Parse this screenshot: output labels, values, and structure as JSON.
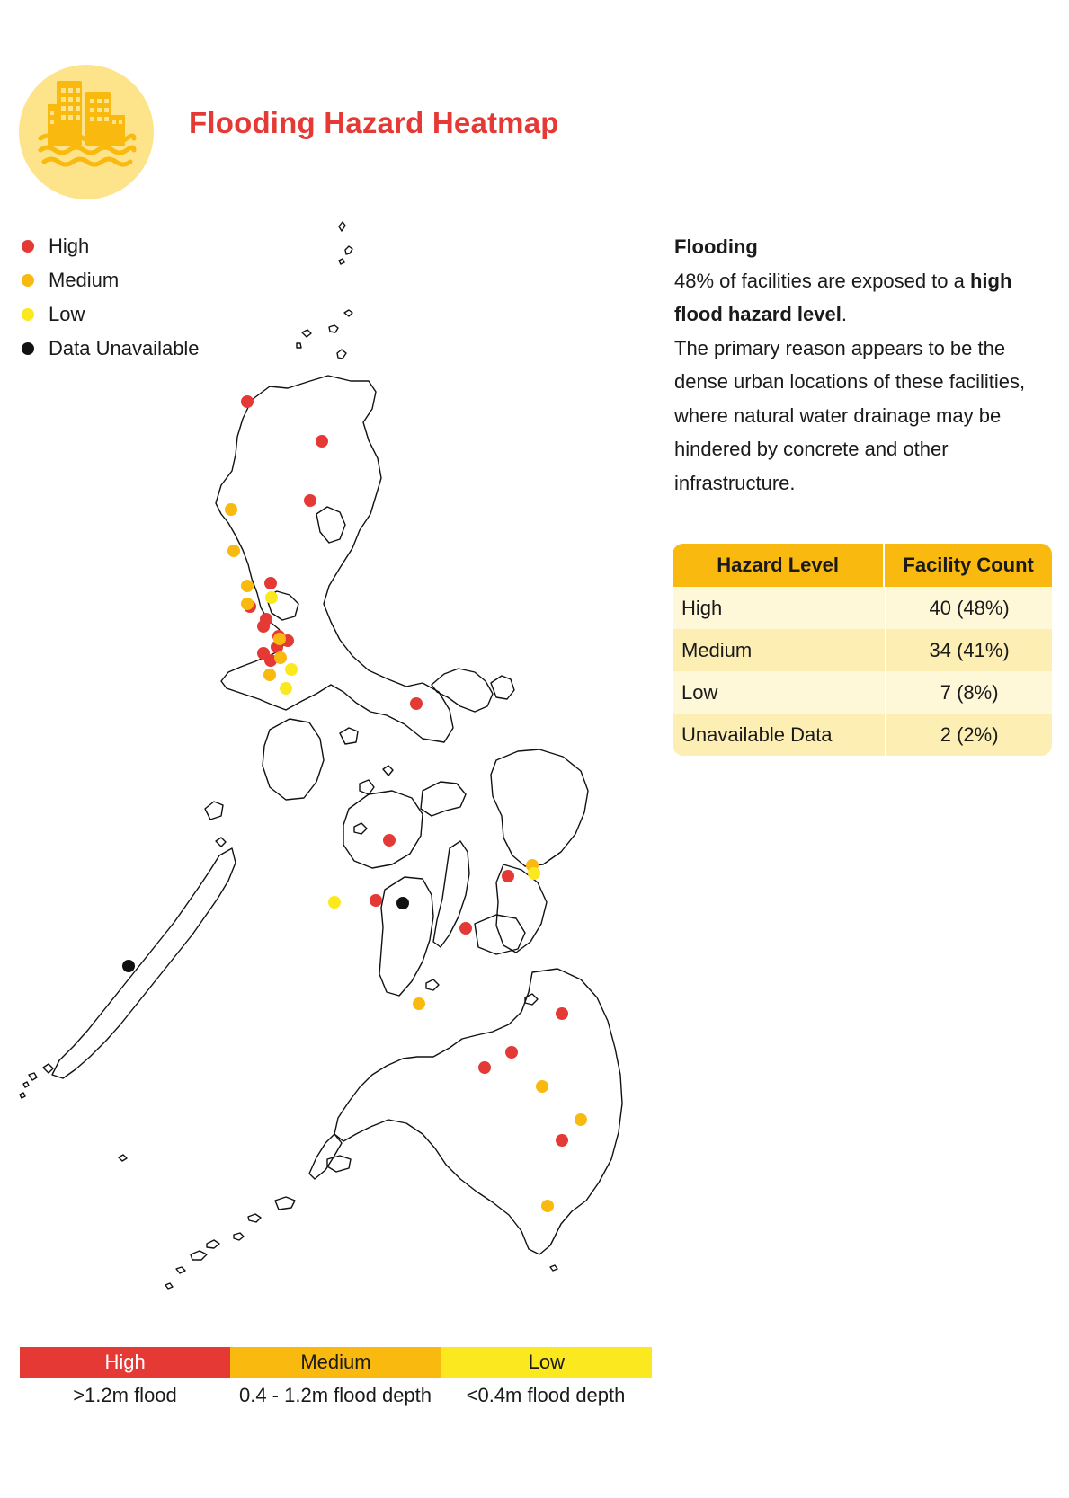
{
  "header": {
    "title": "Flooding Hazard Heatmap",
    "icon": "flooded-buildings-icon",
    "icon_circle_color": "#fde48a",
    "title_color": "#e53935"
  },
  "legend": [
    {
      "label": "High",
      "color": "#e53935"
    },
    {
      "label": "Medium",
      "color": "#f9b90e"
    },
    {
      "label": "Low",
      "color": "#fbe81f"
    },
    {
      "label": "Data Unavailable",
      "color": "#111111"
    }
  ],
  "info": {
    "heading": "Flooding",
    "line1_pre": "48% of facilities are exposed to a ",
    "line1_bold": "high flood hazard level",
    "line1_post": ".",
    "body": "The primary reason appears to be the dense urban locations of these facilities, where natural water drainage may be hindered by concrete and other infrastructure."
  },
  "table": {
    "headers": [
      "Hazard Level",
      "Facility Count"
    ],
    "rows": [
      {
        "level": "High",
        "count": "40 (48%)"
      },
      {
        "level": "Medium",
        "count": "34 (41%)"
      },
      {
        "level": "Low",
        "count": "7 (8%)"
      },
      {
        "level": "Unavailable Data",
        "count": "2 (2%)"
      }
    ],
    "header_color": "#f9b90e"
  },
  "scale": [
    {
      "label": "High",
      "desc": ">1.2m flood",
      "color": "#e53935"
    },
    {
      "label": "Medium",
      "desc": "0.4 - 1.2m flood depth",
      "color": "#f9b90e"
    },
    {
      "label": "Low",
      "desc": "<0.4m flood depth",
      "color": "#fbe81f"
    }
  ],
  "map": {
    "region": "Philippines",
    "outline_color": "#111111",
    "facilities": [
      {
        "lon": 120.68,
        "lat": 18.2,
        "level": "High"
      },
      {
        "lon": 121.75,
        "lat": 17.62,
        "level": "High"
      },
      {
        "lon": 121.6,
        "lat": 16.8,
        "level": "High"
      },
      {
        "lon": 120.41,
        "lat": 16.62,
        "level": "Medium"
      },
      {
        "lon": 120.44,
        "lat": 16.05,
        "level": "Medium"
      },
      {
        "lon": 120.66,
        "lat": 15.55,
        "level": "Medium"
      },
      {
        "lon": 120.97,
        "lat": 15.57,
        "level": "High"
      },
      {
        "lon": 120.97,
        "lat": 15.4,
        "level": "Low"
      },
      {
        "lon": 120.66,
        "lat": 15.17,
        "level": "Medium"
      },
      {
        "lon": 120.69,
        "lat": 15.1,
        "level": "High"
      },
      {
        "lon": 120.9,
        "lat": 14.93,
        "level": "High"
      },
      {
        "lon": 120.87,
        "lat": 14.85,
        "level": "High"
      },
      {
        "lon": 121.07,
        "lat": 14.7,
        "level": "Medium"
      },
      {
        "lon": 121.07,
        "lat": 14.63,
        "level": "High"
      },
      {
        "lon": 121.18,
        "lat": 14.62,
        "level": "High"
      },
      {
        "lon": 121.05,
        "lat": 14.55,
        "level": "High"
      },
      {
        "lon": 121.03,
        "lat": 14.48,
        "level": "High"
      },
      {
        "lon": 120.87,
        "lat": 14.35,
        "level": "High"
      },
      {
        "lon": 120.95,
        "lat": 14.27,
        "level": "High"
      },
      {
        "lon": 121.08,
        "lat": 14.3,
        "level": "Medium"
      },
      {
        "lon": 121.2,
        "lat": 14.12,
        "level": "Low"
      },
      {
        "lon": 120.94,
        "lat": 14.0,
        "level": "Medium"
      },
      {
        "lon": 121.13,
        "lat": 13.82,
        "level": "Low"
      },
      {
        "lon": 123.0,
        "lat": 13.55,
        "level": "High"
      },
      {
        "lon": 122.58,
        "lat": 11.7,
        "level": "High"
      },
      {
        "lon": 124.98,
        "lat": 11.42,
        "level": "Medium"
      },
      {
        "lon": 125.0,
        "lat": 11.28,
        "level": "Low"
      },
      {
        "lon": 124.6,
        "lat": 11.1,
        "level": "High"
      },
      {
        "lon": 121.95,
        "lat": 10.78,
        "level": "Low"
      },
      {
        "lon": 122.4,
        "lat": 10.78,
        "level": "High"
      },
      {
        "lon": 122.75,
        "lat": 10.73,
        "level": "Data Unavailable"
      },
      {
        "lon": 123.9,
        "lat": 10.38,
        "level": "High"
      },
      {
        "lon": 118.75,
        "lat": 9.75,
        "level": "Data Unavailable"
      },
      {
        "lon": 123.3,
        "lat": 9.3,
        "level": "Medium"
      },
      {
        "lon": 125.5,
        "lat": 8.95,
        "level": "High"
      },
      {
        "lon": 124.65,
        "lat": 8.48,
        "level": "High"
      },
      {
        "lon": 124.25,
        "lat": 8.25,
        "level": "High"
      },
      {
        "lon": 125.13,
        "lat": 7.9,
        "level": "Medium"
      },
      {
        "lon": 125.7,
        "lat": 7.42,
        "level": "Medium"
      },
      {
        "lon": 125.5,
        "lat": 7.2,
        "level": "High"
      },
      {
        "lon": 125.17,
        "lat": 6.12,
        "level": "Medium"
      }
    ]
  }
}
